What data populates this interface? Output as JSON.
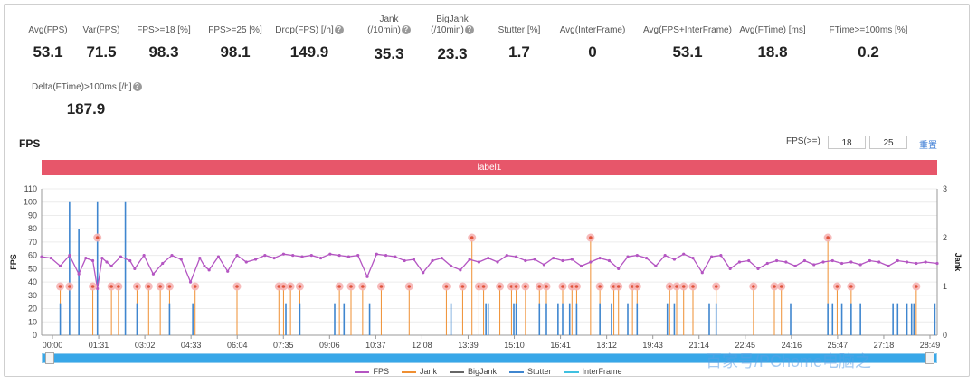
{
  "stats": [
    {
      "label": "Avg(FPS)",
      "value": "53.1"
    },
    {
      "label": "Var(FPS)",
      "value": "71.5"
    },
    {
      "label": "FPS>=18 [%]",
      "value": "98.3"
    },
    {
      "label": "FPS>=25 [%]",
      "value": "98.1"
    },
    {
      "label": "Drop(FPS) [/h]",
      "value": "149.9",
      "help": true
    },
    {
      "label": "Jank",
      "label2": "(/10min)",
      "value": "35.3",
      "help": true
    },
    {
      "label": "BigJank",
      "label2": "(/10min)",
      "value": "23.3",
      "help": true
    },
    {
      "label": "Stutter [%]",
      "value": "1.7"
    },
    {
      "label": "Avg(InterFrame)",
      "value": "0"
    },
    {
      "label": "Avg(FPS+InterFrame)",
      "value": "53.1"
    },
    {
      "label": "Avg(FTime) [ms]",
      "value": "18.8"
    },
    {
      "label": "FTime>=100ms [%]",
      "value": "0.2"
    },
    {
      "label": "Delta(FTime)>100ms [/h]",
      "value": "187.9",
      "help": true
    }
  ],
  "chart_title": "FPS",
  "fps_threshold": {
    "label": "FPS(>=)",
    "low": "18",
    "high": "25",
    "reset": "重置"
  },
  "band_label": "label1",
  "help_glyph": "?",
  "watermark": "百家号/PChome电脑之",
  "colors": {
    "fps": "#b455c2",
    "jank": "#ef8f32",
    "bigjank": "#666666",
    "stutter": "#3f86cf",
    "interframe": "#3fc0e0",
    "band": "#e7566a"
  },
  "chart_data": {
    "type": "line",
    "title": "FPS",
    "ylabel": "FPS",
    "y2label": "Jank",
    "ylim": [
      0,
      110
    ],
    "y2lim": [
      0,
      3
    ],
    "yticks": [
      0,
      10,
      20,
      30,
      40,
      50,
      60,
      70,
      80,
      90,
      100,
      110
    ],
    "y2ticks": [
      0,
      1,
      2,
      3
    ],
    "xlim": [
      0,
      1925
    ],
    "x_tick_labels": [
      "00:00",
      "01:31",
      "03:02",
      "04:33",
      "06:04",
      "07:35",
      "09:06",
      "10:37",
      "12:08",
      "13:39",
      "15:10",
      "16:41",
      "18:12",
      "19:43",
      "21:14",
      "22:45",
      "24:16",
      "25:47",
      "27:18",
      "28:49"
    ],
    "legend": [
      "FPS",
      "Jank",
      "BigJank",
      "Stutter",
      "InterFrame"
    ],
    "legend_position": "bottom",
    "series": [
      {
        "name": "FPS",
        "x": [
          0,
          20,
          40,
          60,
          80,
          95,
          110,
          120,
          130,
          140,
          150,
          170,
          190,
          200,
          220,
          240,
          260,
          280,
          300,
          320,
          340,
          350,
          360,
          380,
          400,
          420,
          440,
          460,
          480,
          500,
          520,
          540,
          560,
          580,
          600,
          620,
          640,
          660,
          680,
          700,
          720,
          740,
          760,
          780,
          800,
          820,
          840,
          860,
          880,
          900,
          920,
          940,
          960,
          980,
          1000,
          1020,
          1040,
          1060,
          1080,
          1100,
          1120,
          1140,
          1160,
          1180,
          1200,
          1220,
          1240,
          1260,
          1280,
          1300,
          1320,
          1340,
          1360,
          1380,
          1400,
          1420,
          1440,
          1460,
          1480,
          1500,
          1520,
          1540,
          1560,
          1580,
          1600,
          1620,
          1640,
          1660,
          1680,
          1700,
          1720,
          1740,
          1760,
          1780,
          1800,
          1820,
          1840,
          1860,
          1880,
          1900,
          1925
        ],
        "y": [
          59,
          58,
          52,
          60,
          46,
          58,
          56,
          35,
          58,
          55,
          52,
          59,
          56,
          50,
          60,
          46,
          54,
          60,
          57,
          40,
          58,
          52,
          49,
          59,
          48,
          60,
          55,
          57,
          60,
          58,
          61,
          60,
          59,
          60,
          58,
          61,
          60,
          59,
          60,
          44,
          61,
          60,
          59,
          56,
          57,
          47,
          56,
          58,
          52,
          49,
          57,
          55,
          58,
          55,
          60,
          59,
          56,
          57,
          53,
          58,
          56,
          57,
          52,
          55,
          58,
          56,
          50,
          59,
          60,
          58,
          52,
          60,
          57,
          61,
          58,
          47,
          59,
          60,
          50,
          55,
          56,
          50,
          54,
          56,
          55,
          52,
          56,
          53,
          55,
          56,
          54,
          55,
          53,
          56,
          55,
          52,
          56,
          55,
          54,
          55,
          54
        ]
      },
      {
        "name": "Jank",
        "x": [
          40,
          60,
          110,
          120,
          150,
          165,
          205,
          230,
          255,
          275,
          330,
          420,
          510,
          520,
          535,
          555,
          640,
          665,
          690,
          730,
          790,
          870,
          905,
          925,
          940,
          950,
          985,
          1010,
          1020,
          1040,
          1070,
          1085,
          1120,
          1140,
          1150,
          1180,
          1200,
          1230,
          1240,
          1270,
          1280,
          1350,
          1365,
          1380,
          1400,
          1450,
          1530,
          1575,
          1590,
          1690,
          1710,
          1740,
          1880
        ],
        "y": [
          1,
          1,
          1,
          2,
          1,
          1,
          1,
          1,
          1,
          1,
          1,
          1,
          1,
          1,
          1,
          1,
          1,
          1,
          1,
          1,
          1,
          1,
          1,
          2,
          1,
          1,
          1,
          1,
          1,
          1,
          1,
          1,
          1,
          1,
          1,
          2,
          1,
          1,
          1,
          1,
          1,
          1,
          1,
          1,
          1,
          1,
          1,
          1,
          1,
          2,
          1,
          1,
          1
        ]
      },
      {
        "name": "Stutter",
        "x": [
          40,
          60,
          80,
          120,
          180,
          205,
          275,
          325,
          525,
          555,
          630,
          650,
          705,
          880,
          955,
          960,
          1015,
          1020,
          1070,
          1085,
          1110,
          1120,
          1135,
          1150,
          1200,
          1225,
          1260,
          1280,
          1345,
          1360,
          1435,
          1450,
          1610,
          1690,
          1700,
          1720,
          1740,
          1760,
          1830,
          1840,
          1860,
          1870,
          1875,
          1920
        ],
        "y": [
          1,
          100,
          80,
          100,
          100,
          1,
          1,
          1,
          1,
          1,
          1,
          1,
          1,
          1,
          1,
          1,
          1,
          1,
          1,
          1,
          1,
          1,
          1,
          1,
          1,
          1,
          1,
          1,
          1,
          1,
          1,
          1,
          1,
          1,
          1,
          1,
          1,
          1,
          1,
          1,
          1,
          1,
          1,
          1
        ]
      },
      {
        "name": "BigJank",
        "x": [],
        "y": []
      },
      {
        "name": "InterFrame",
        "x": [],
        "y": []
      }
    ]
  }
}
